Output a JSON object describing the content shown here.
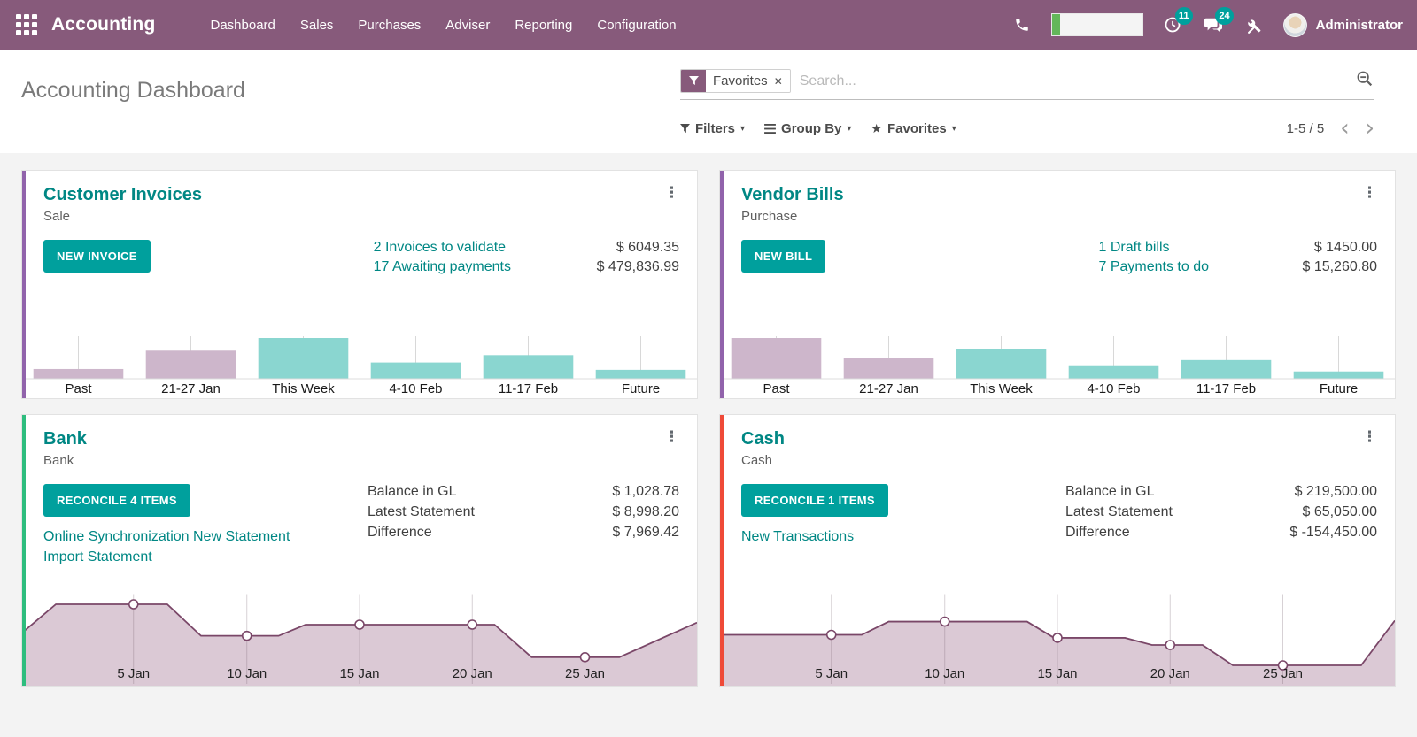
{
  "navbar": {
    "bar_color": "#875A7B",
    "accent_color": "#00A09D",
    "app_title": "Accounting",
    "menu": [
      "Dashboard",
      "Sales",
      "Purchases",
      "Adviser",
      "Reporting",
      "Configuration"
    ],
    "activity_badge": "11",
    "message_badge": "24",
    "user_name": "Administrator"
  },
  "control_panel": {
    "title": "Accounting Dashboard",
    "facet_label": "Favorites",
    "search_placeholder": "Search...",
    "filters_label": "Filters",
    "group_by_label": "Group By",
    "favorites_label": "Favorites",
    "pager_value": "1-5 / 5"
  },
  "cards": [
    {
      "title": "Customer Invoices",
      "subtitle": "Sale",
      "button": "NEW INVOICE",
      "stripe_color": "#9163ab",
      "rows": [
        {
          "link": "2 Invoices to validate",
          "amount": "$ 6049.35"
        },
        {
          "link": "17 Awaiting payments",
          "amount": "$ 479,836.99"
        }
      ]
    },
    {
      "title": "Vendor Bills",
      "subtitle": "Purchase",
      "button": "NEW BILL",
      "stripe_color": "#9163ab",
      "rows": [
        {
          "link": "1 Draft bills",
          "amount": "$ 1450.00"
        },
        {
          "link": "7 Payments to do",
          "amount": "$ 15,260.80"
        }
      ]
    },
    {
      "title": "Bank",
      "subtitle": "Bank",
      "button": "RECONCILE 4 ITEMS",
      "stripe_color": "#2ebd7e",
      "links": [
        "Online Synchronization",
        "New Statement",
        "Import Statement"
      ],
      "stats": [
        {
          "label": "Balance in GL",
          "amount": "$ 1,028.78"
        },
        {
          "label": "Latest Statement",
          "amount": "$ 8,998.20"
        },
        {
          "label": "Difference",
          "amount": "$ 7,969.42"
        }
      ]
    },
    {
      "title": "Cash",
      "subtitle": "Cash",
      "button": "RECONCILE 1 ITEMS",
      "stripe_color": "#ef4a38",
      "links": [
        "New Transactions"
      ],
      "stats": [
        {
          "label": "Balance in GL",
          "amount": "$ 219,500.00"
        },
        {
          "label": "Latest Statement",
          "amount": "$ 65,050.00"
        },
        {
          "label": "Difference",
          "amount": "$ -154,450.00"
        }
      ]
    }
  ],
  "chart_data": [
    {
      "type": "bar",
      "title": "Customer Invoices weekly totals",
      "categories": [
        "Past",
        "21-27 Jan",
        "This Week",
        "4-10 Feb",
        "11-17 Feb",
        "Future"
      ],
      "values": [
        0.24,
        0.69,
        1.0,
        0.4,
        0.58,
        0.22
      ],
      "note": "relative bar heights; no value axis shown",
      "bar_colors": [
        "#cdb6cb",
        "#cdb6cb",
        "#8ad6d0",
        "#8ad6d0",
        "#8ad6d0",
        "#8ad6d0"
      ],
      "grid": true,
      "legend": "none"
    },
    {
      "type": "bar",
      "title": "Vendor Bills weekly totals",
      "categories": [
        "Past",
        "21-27 Jan",
        "This Week",
        "4-10 Feb",
        "11-17 Feb",
        "Future"
      ],
      "values": [
        1.0,
        0.5,
        0.73,
        0.31,
        0.46,
        0.18
      ],
      "note": "relative bar heights; no value axis shown",
      "bar_colors": [
        "#cdb6cb",
        "#cdb6cb",
        "#8ad6d0",
        "#8ad6d0",
        "#8ad6d0",
        "#8ad6d0"
      ],
      "grid": true,
      "legend": "none"
    },
    {
      "type": "area",
      "title": "Bank balance over January",
      "x_labels": [
        "5 Jan",
        "10 Jan",
        "15 Jan",
        "20 Jan",
        "25 Jan"
      ],
      "points": [
        [
          0,
          0.52
        ],
        [
          0.05,
          0.8
        ],
        [
          0.165,
          0.8
        ],
        [
          0.215,
          0.8
        ],
        [
          0.265,
          0.49
        ],
        [
          0.333,
          0.49
        ],
        [
          0.38,
          0.49
        ],
        [
          0.42,
          0.6
        ],
        [
          0.5,
          0.6
        ],
        [
          0.667,
          0.6
        ],
        [
          0.7,
          0.6
        ],
        [
          0.755,
          0.28
        ],
        [
          0.834,
          0.28
        ],
        [
          0.885,
          0.28
        ],
        [
          1,
          0.62
        ]
      ],
      "markers": [
        [
          0.165,
          0.8
        ],
        [
          0.333,
          0.49
        ],
        [
          0.5,
          0.6
        ],
        [
          0.667,
          0.6
        ],
        [
          0.834,
          0.28
        ]
      ],
      "note": "x = fraction of width, y = fraction of chart height; no value axis shown",
      "stroke": "#7a4768",
      "fill": "#dbc9d5",
      "grid": true,
      "legend": "none"
    },
    {
      "type": "area",
      "title": "Cash balance over January",
      "x_labels": [
        "5 Jan",
        "10 Jan",
        "15 Jan",
        "20 Jan",
        "25 Jan"
      ],
      "points": [
        [
          0,
          0.5
        ],
        [
          0.165,
          0.5
        ],
        [
          0.21,
          0.5
        ],
        [
          0.25,
          0.63
        ],
        [
          0.333,
          0.63
        ],
        [
          0.455,
          0.63
        ],
        [
          0.495,
          0.47
        ],
        [
          0.5,
          0.47
        ],
        [
          0.6,
          0.47
        ],
        [
          0.64,
          0.4
        ],
        [
          0.667,
          0.4
        ],
        [
          0.715,
          0.4
        ],
        [
          0.76,
          0.2
        ],
        [
          0.834,
          0.2
        ],
        [
          0.95,
          0.2
        ],
        [
          1,
          0.64
        ]
      ],
      "markers": [
        [
          0.165,
          0.5
        ],
        [
          0.333,
          0.63
        ],
        [
          0.5,
          0.47
        ],
        [
          0.667,
          0.4
        ],
        [
          0.834,
          0.2
        ]
      ],
      "note": "x = fraction of width, y = fraction of chart height; no value axis shown",
      "stroke": "#7a4768",
      "fill": "#dbc9d5",
      "grid": true,
      "legend": "none"
    }
  ]
}
